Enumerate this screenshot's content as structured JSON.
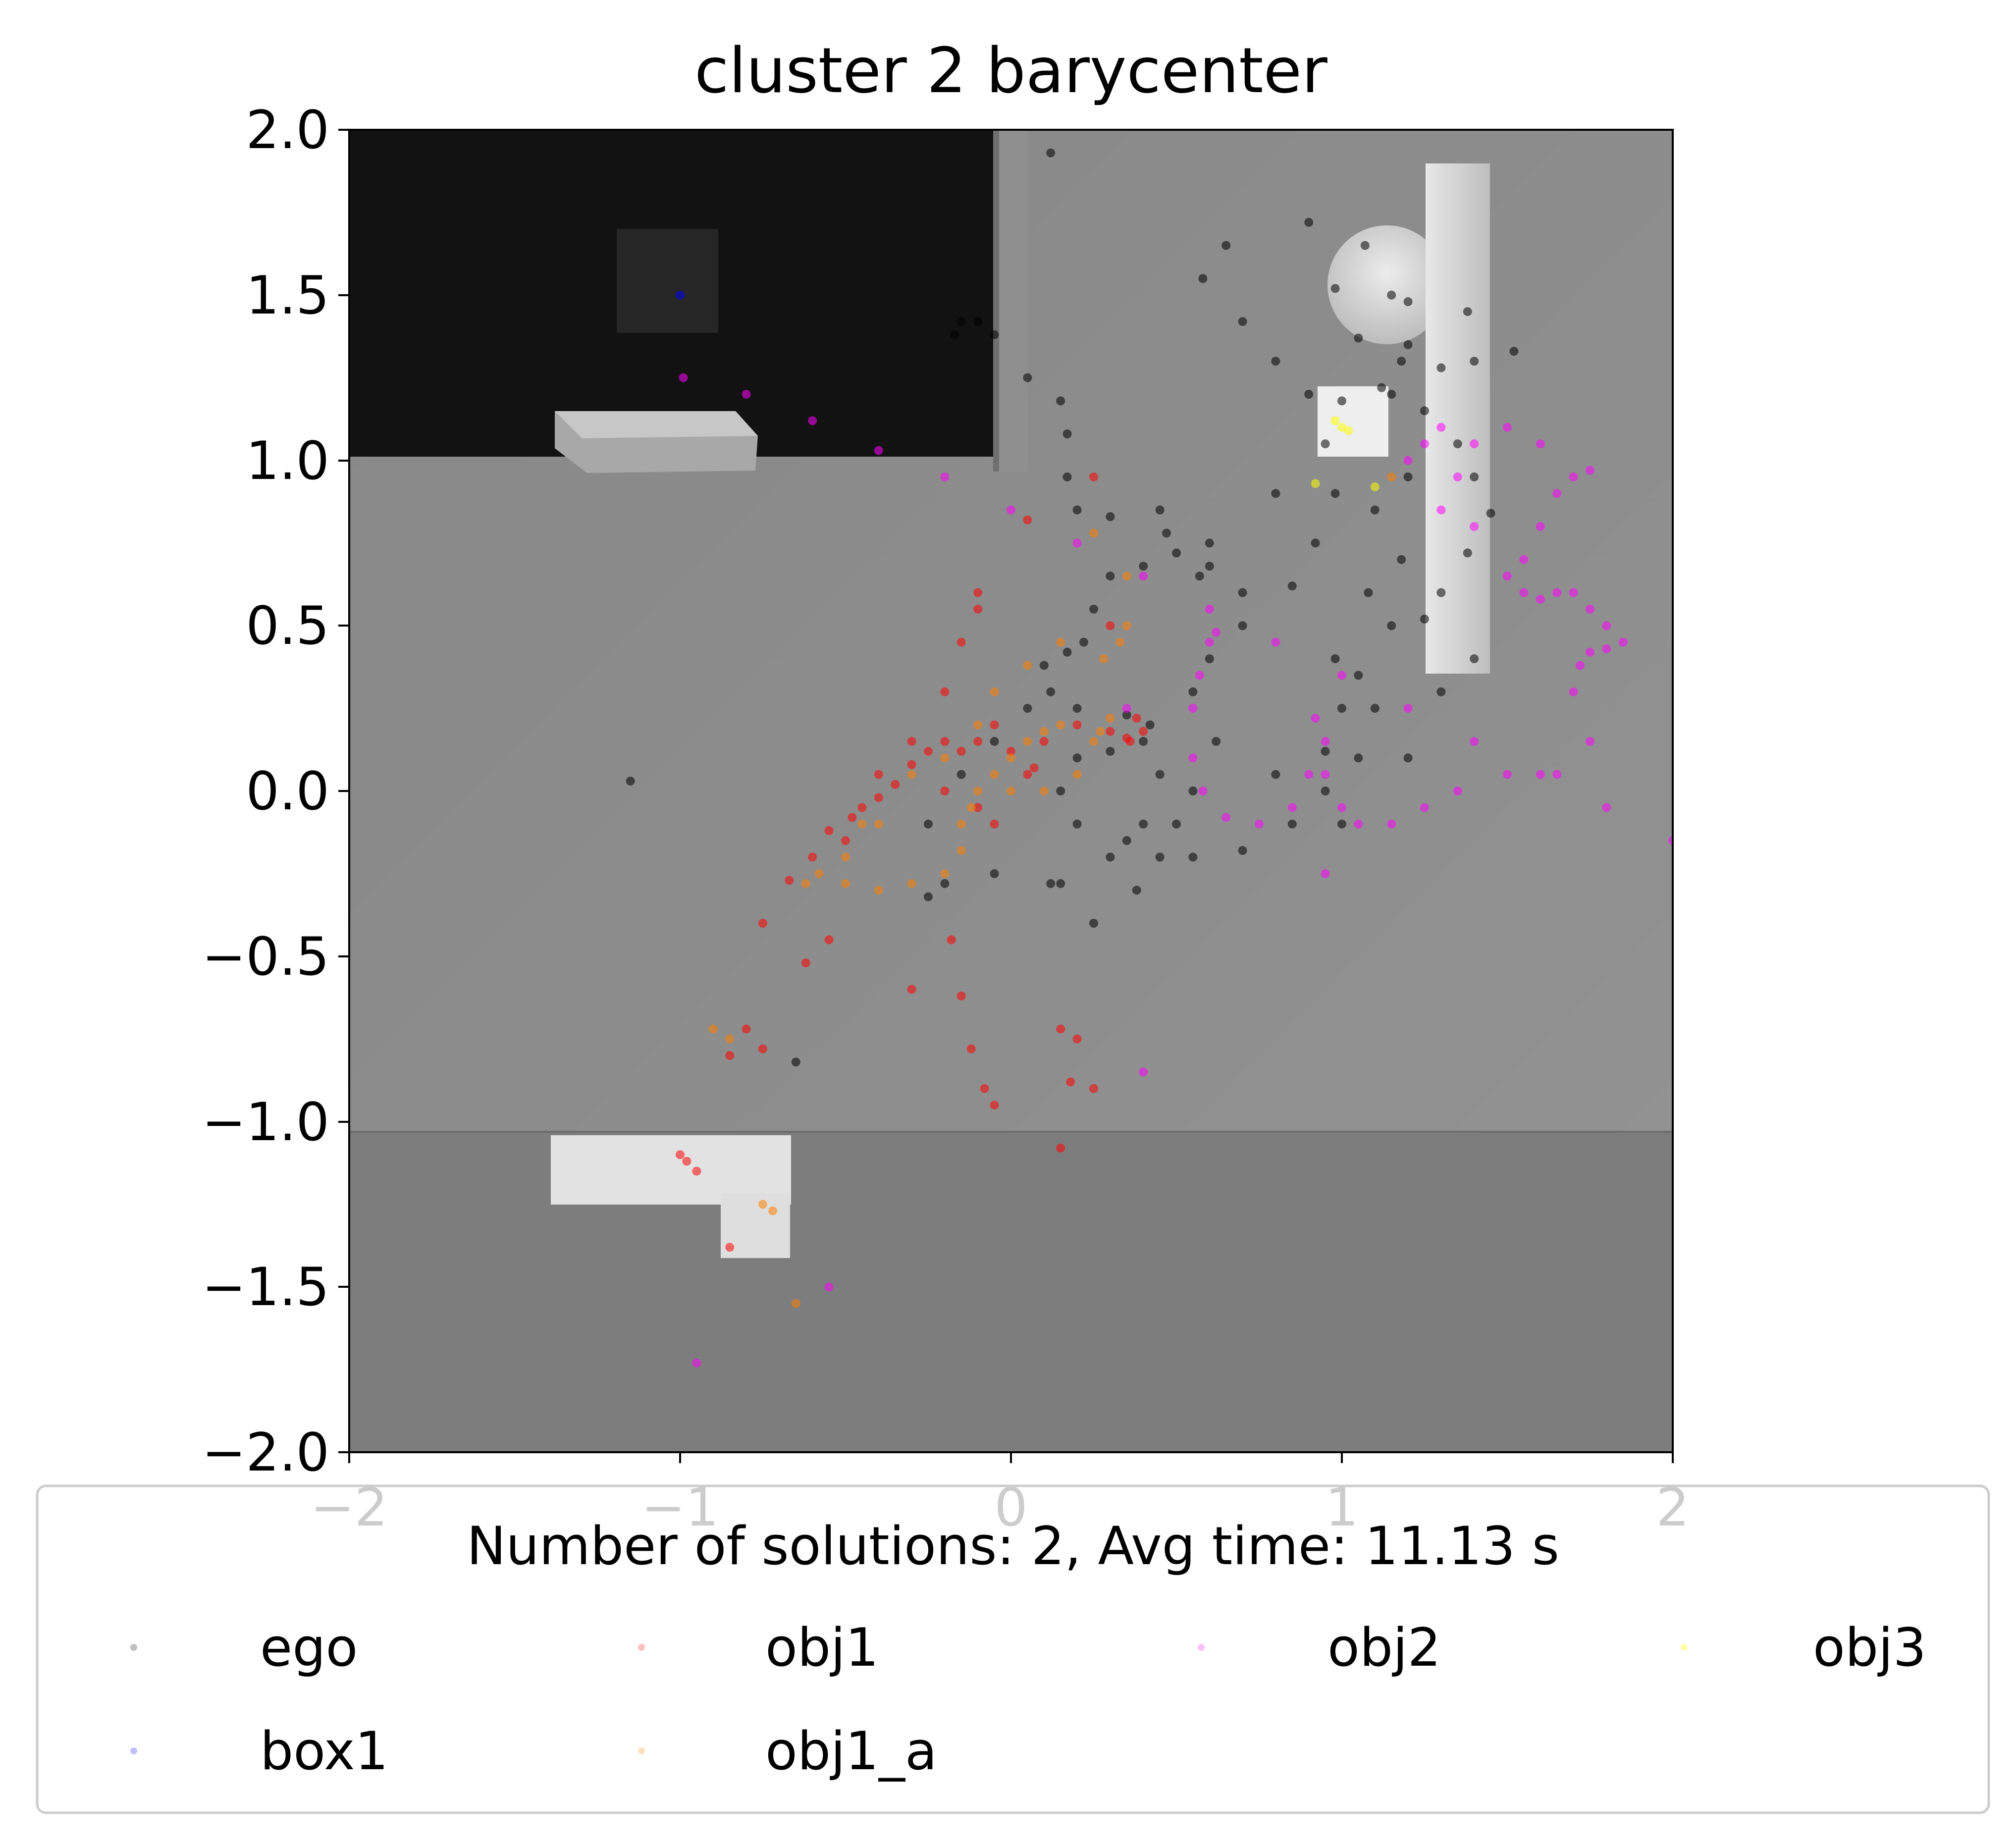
{
  "chart_data": {
    "type": "scatter",
    "title": "cluster 2 barycenter",
    "xlabel": "",
    "ylabel": "",
    "xlim": [
      -2,
      2
    ],
    "ylim": [
      -2,
      2
    ],
    "x_ticks": [
      "−2",
      "−1",
      "0",
      "1",
      "2"
    ],
    "y_ticks": [
      "2.0",
      "1.5",
      "1.0",
      "0.5",
      "0.0",
      "−0.5",
      "−1.0",
      "−1.5",
      "−2.0"
    ],
    "grid": false,
    "legend": {
      "title": "Number of solutions: 2, Avg time: 11.13 s",
      "placement": "bottom",
      "columns": 4
    },
    "series": [
      {
        "name": "ego",
        "color": "#000000",
        "points": [
          [
            -0.17,
            1.38
          ],
          [
            -0.15,
            1.42
          ],
          [
            -0.1,
            1.42
          ],
          [
            -0.05,
            1.38
          ],
          [
            0.05,
            1.25
          ],
          [
            0.15,
            1.18
          ],
          [
            0.17,
            1.08
          ],
          [
            0.17,
            0.95
          ],
          [
            0.2,
            0.85
          ],
          [
            0.3,
            0.83
          ],
          [
            0.45,
            0.85
          ],
          [
            0.47,
            0.78
          ],
          [
            0.5,
            0.72
          ],
          [
            0.6,
            0.68
          ],
          [
            0.57,
            0.65
          ],
          [
            0.4,
            0.68
          ],
          [
            0.3,
            0.65
          ],
          [
            0.25,
            0.55
          ],
          [
            0.22,
            0.45
          ],
          [
            0.17,
            0.42
          ],
          [
            0.1,
            0.38
          ],
          [
            0.12,
            0.3
          ],
          [
            0.2,
            0.25
          ],
          [
            0.35,
            0.23
          ],
          [
            0.42,
            0.2
          ],
          [
            0.4,
            0.15
          ],
          [
            0.3,
            0.12
          ],
          [
            0.2,
            0.1
          ],
          [
            0.15,
            0.0
          ],
          [
            0.2,
            -0.1
          ],
          [
            0.35,
            -0.15
          ],
          [
            0.45,
            -0.2
          ],
          [
            0.38,
            -0.3
          ],
          [
            0.25,
            -0.4
          ],
          [
            0.15,
            -0.28
          ],
          [
            0.3,
            -0.2
          ],
          [
            0.5,
            -0.1
          ],
          [
            0.55,
            0.0
          ],
          [
            0.45,
            0.05
          ],
          [
            0.4,
            -0.1
          ],
          [
            0.55,
            -0.2
          ],
          [
            0.7,
            -0.18
          ],
          [
            0.85,
            -0.1
          ],
          [
            0.95,
            0.0
          ],
          [
            1.05,
            0.1
          ],
          [
            1.1,
            0.25
          ],
          [
            1.05,
            0.35
          ],
          [
            1.15,
            0.5
          ],
          [
            1.3,
            0.6
          ],
          [
            1.38,
            0.72
          ],
          [
            1.45,
            0.84
          ],
          [
            1.4,
            0.95
          ],
          [
            1.35,
            1.05
          ],
          [
            1.25,
            1.15
          ],
          [
            1.15,
            1.2
          ],
          [
            1.2,
            1.35
          ],
          [
            1.38,
            1.45
          ],
          [
            1.52,
            1.33
          ],
          [
            1.4,
            1.3
          ],
          [
            1.3,
            1.28
          ],
          [
            1.18,
            1.3
          ],
          [
            1.15,
            1.5
          ],
          [
            1.07,
            1.65
          ],
          [
            0.9,
            1.72
          ],
          [
            0.65,
            1.65
          ],
          [
            0.58,
            1.55
          ],
          [
            0.7,
            1.42
          ],
          [
            0.8,
            1.3
          ],
          [
            0.9,
            1.2
          ],
          [
            0.95,
            1.05
          ],
          [
            0.98,
            0.9
          ],
          [
            0.92,
            0.75
          ],
          [
            0.85,
            0.62
          ],
          [
            0.7,
            0.5
          ],
          [
            0.6,
            0.4
          ],
          [
            0.55,
            0.3
          ],
          [
            0.62,
            0.15
          ],
          [
            0.8,
            0.05
          ],
          [
            0.95,
            0.12
          ],
          [
            1.0,
            0.25
          ],
          [
            0.98,
            0.4
          ],
          [
            1.08,
            0.6
          ],
          [
            1.18,
            0.7
          ],
          [
            1.25,
            0.52
          ],
          [
            0.05,
            0.25
          ],
          [
            -0.05,
            0.15
          ],
          [
            -0.15,
            0.05
          ],
          [
            -0.25,
            -0.1
          ],
          [
            -0.25,
            -0.32
          ],
          [
            -0.2,
            -0.28
          ],
          [
            -0.05,
            -0.25
          ],
          [
            0.12,
            -0.28
          ],
          [
            -1.15,
            0.03
          ],
          [
            -0.65,
            -0.82
          ],
          [
            0.12,
            1.93
          ],
          [
            0.98,
            1.52
          ],
          [
            1.2,
            1.48
          ],
          [
            1.05,
            1.37
          ],
          [
            1.12,
            1.22
          ],
          [
            1.0,
            1.18
          ],
          [
            0.8,
            0.9
          ],
          [
            0.6,
            0.75
          ],
          [
            0.7,
            0.6
          ],
          [
            1.0,
            -0.1
          ],
          [
            1.2,
            0.1
          ],
          [
            1.3,
            0.3
          ],
          [
            1.4,
            0.4
          ],
          [
            1.2,
            0.95
          ],
          [
            1.1,
            0.85
          ]
        ]
      },
      {
        "name": "obj1",
        "color": "#ff0000",
        "points": [
          [
            -0.67,
            -0.27
          ],
          [
            -0.6,
            -0.2
          ],
          [
            -0.55,
            -0.12
          ],
          [
            -0.48,
            -0.08
          ],
          [
            -0.4,
            -0.02
          ],
          [
            -0.35,
            0.02
          ],
          [
            -0.3,
            0.08
          ],
          [
            -0.25,
            0.12
          ],
          [
            -0.2,
            0.15
          ],
          [
            -0.15,
            0.12
          ],
          [
            -0.1,
            0.15
          ],
          [
            -0.05,
            0.2
          ],
          [
            0.0,
            0.12
          ],
          [
            0.05,
            0.05
          ],
          [
            0.07,
            0.07
          ],
          [
            0.1,
            0.15
          ],
          [
            0.2,
            0.2
          ],
          [
            0.3,
            0.18
          ],
          [
            0.35,
            0.16
          ],
          [
            0.38,
            0.22
          ],
          [
            0.4,
            0.18
          ],
          [
            0.36,
            0.15
          ],
          [
            -0.5,
            -0.15
          ],
          [
            -0.45,
            -0.05
          ],
          [
            -0.4,
            0.05
          ],
          [
            -0.3,
            0.15
          ],
          [
            -0.2,
            0.3
          ],
          [
            -0.15,
            0.45
          ],
          [
            -0.1,
            0.55
          ],
          [
            -0.1,
            0.6
          ],
          [
            -0.2,
            0.0
          ],
          [
            -0.1,
            -0.05
          ],
          [
            -0.05,
            -0.1
          ],
          [
            -0.75,
            -0.78
          ],
          [
            -0.85,
            -0.8
          ],
          [
            -0.8,
            -0.72
          ],
          [
            -0.62,
            -0.52
          ],
          [
            -0.3,
            -0.6
          ],
          [
            -0.15,
            -0.62
          ],
          [
            -0.18,
            -0.45
          ],
          [
            -0.12,
            -0.78
          ],
          [
            -0.08,
            -0.9
          ],
          [
            -0.05,
            -0.95
          ],
          [
            0.15,
            -0.72
          ],
          [
            0.2,
            -0.75
          ],
          [
            0.18,
            -0.88
          ],
          [
            0.25,
            -0.9
          ],
          [
            0.15,
            -1.08
          ],
          [
            -1.0,
            -1.1
          ],
          [
            -0.98,
            -1.12
          ],
          [
            -0.95,
            -1.15
          ],
          [
            -0.85,
            -1.38
          ],
          [
            0.05,
            0.82
          ],
          [
            0.25,
            0.95
          ],
          [
            0.3,
            0.5
          ],
          [
            -0.75,
            -0.4
          ],
          [
            -0.55,
            -0.45
          ]
        ]
      },
      {
        "name": "obj2",
        "color": "#ff00ff",
        "points": [
          [
            -0.99,
            1.25
          ],
          [
            -0.8,
            1.2
          ],
          [
            -0.6,
            1.12
          ],
          [
            -0.4,
            1.03
          ],
          [
            -0.2,
            0.95
          ],
          [
            0.0,
            0.85
          ],
          [
            0.2,
            0.75
          ],
          [
            0.4,
            0.65
          ],
          [
            0.6,
            0.55
          ],
          [
            0.8,
            0.45
          ],
          [
            1.0,
            0.35
          ],
          [
            1.2,
            0.25
          ],
          [
            1.4,
            0.15
          ],
          [
            1.6,
            0.05
          ],
          [
            1.8,
            -0.05
          ],
          [
            2.0,
            -0.15
          ],
          [
            0.62,
            0.48
          ],
          [
            0.6,
            0.45
          ],
          [
            0.57,
            0.35
          ],
          [
            0.55,
            0.25
          ],
          [
            0.55,
            0.1
          ],
          [
            0.58,
            0.0
          ],
          [
            0.65,
            -0.08
          ],
          [
            0.75,
            -0.1
          ],
          [
            0.85,
            -0.05
          ],
          [
            0.9,
            0.05
          ],
          [
            0.95,
            0.15
          ],
          [
            0.92,
            0.22
          ],
          [
            0.95,
            0.05
          ],
          [
            1.0,
            -0.05
          ],
          [
            1.05,
            -0.1
          ],
          [
            1.15,
            -0.1
          ],
          [
            1.25,
            -0.05
          ],
          [
            1.35,
            0.0
          ],
          [
            1.5,
            0.05
          ],
          [
            1.65,
            0.05
          ],
          [
            1.75,
            0.15
          ],
          [
            1.7,
            0.3
          ],
          [
            1.72,
            0.38
          ],
          [
            1.75,
            0.42
          ],
          [
            1.8,
            0.43
          ],
          [
            1.85,
            0.45
          ],
          [
            1.8,
            0.5
          ],
          [
            1.75,
            0.55
          ],
          [
            1.7,
            0.6
          ],
          [
            1.65,
            0.6
          ],
          [
            1.6,
            0.58
          ],
          [
            1.55,
            0.6
          ],
          [
            1.55,
            0.7
          ],
          [
            1.6,
            0.8
          ],
          [
            1.65,
            0.9
          ],
          [
            1.7,
            0.95
          ],
          [
            1.75,
            0.97
          ],
          [
            1.6,
            1.05
          ],
          [
            1.5,
            1.1
          ],
          [
            1.4,
            1.05
          ],
          [
            1.35,
            0.95
          ],
          [
            1.3,
            0.85
          ],
          [
            1.25,
            1.05
          ],
          [
            1.3,
            1.1
          ],
          [
            1.2,
            1.0
          ],
          [
            1.4,
            0.8
          ],
          [
            1.5,
            0.65
          ],
          [
            0.95,
            -0.25
          ],
          [
            0.4,
            -0.85
          ],
          [
            -0.55,
            -1.5
          ],
          [
            -0.95,
            -1.73
          ],
          [
            0.35,
            0.25
          ]
        ]
      },
      {
        "name": "obj3",
        "color": "#ffff00",
        "points": [
          [
            1.0,
            1.1
          ],
          [
            1.02,
            1.09
          ],
          [
            0.98,
            1.12
          ],
          [
            0.92,
            0.93
          ],
          [
            1.1,
            0.92
          ]
        ]
      },
      {
        "name": "box1",
        "color": "#0000ff",
        "points": [
          [
            -1.0,
            1.5
          ]
        ]
      },
      {
        "name": "obj1_a",
        "color": "#ff8000",
        "points": [
          [
            -0.62,
            -0.28
          ],
          [
            -0.58,
            -0.25
          ],
          [
            -0.5,
            -0.28
          ],
          [
            -0.4,
            -0.3
          ],
          [
            -0.3,
            -0.28
          ],
          [
            -0.2,
            -0.25
          ],
          [
            -0.15,
            -0.18
          ],
          [
            -0.15,
            -0.1
          ],
          [
            -0.12,
            -0.05
          ],
          [
            -0.1,
            0.0
          ],
          [
            -0.05,
            0.05
          ],
          [
            0.0,
            0.1
          ],
          [
            0.05,
            0.15
          ],
          [
            0.1,
            0.18
          ],
          [
            0.15,
            0.2
          ],
          [
            0.25,
            0.15
          ],
          [
            0.27,
            0.18
          ],
          [
            0.3,
            0.22
          ],
          [
            0.28,
            0.4
          ],
          [
            0.33,
            0.45
          ],
          [
            0.35,
            0.5
          ],
          [
            0.15,
            0.45
          ],
          [
            0.05,
            0.38
          ],
          [
            -0.05,
            0.3
          ],
          [
            -0.1,
            0.2
          ],
          [
            -0.2,
            0.1
          ],
          [
            -0.3,
            0.05
          ],
          [
            -0.4,
            -0.1
          ],
          [
            -0.5,
            -0.2
          ],
          [
            -0.45,
            -0.1
          ],
          [
            0.0,
            0.0
          ],
          [
            0.1,
            0.0
          ],
          [
            0.2,
            0.05
          ],
          [
            -0.9,
            -0.72
          ],
          [
            -0.85,
            -0.75
          ],
          [
            -0.75,
            -1.25
          ],
          [
            -0.72,
            -1.27
          ],
          [
            -0.65,
            -1.55
          ],
          [
            0.25,
            0.78
          ],
          [
            0.35,
            0.65
          ],
          [
            1.15,
            0.95
          ]
        ]
      }
    ]
  },
  "colors": {
    "figure_background": "#ffffff",
    "room_floor": "#8a8a8a",
    "room_lower": "#7c7c7c",
    "room_upper_dark": "#121212",
    "furniture": "#d9d9d9"
  }
}
